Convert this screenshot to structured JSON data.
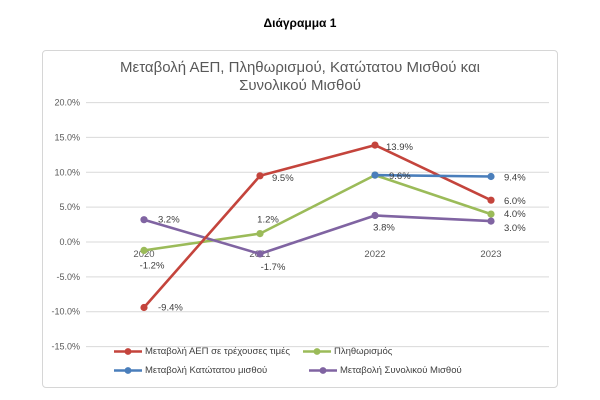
{
  "page": {
    "title": "Διάγραμμα 1"
  },
  "chart": {
    "title_line1": "Μεταβολή ΑΕΠ, Πληθωρισμού, Κατώτατου Μισθού και",
    "title_line2": "Συνολικού Μισθού"
  },
  "chart_data": {
    "type": "line",
    "title": "Μεταβολή ΑΕΠ, Πληθωρισμού, Κατώτατου Μισθού και Συνολικού Μισθού",
    "categories": [
      "2020",
      "2021",
      "2022",
      "2023"
    ],
    "series": [
      {
        "name": "Μεταβολή ΑΕΠ σε τρέχουσες τιμές",
        "color": "#C4443C",
        "values": [
          -9.4,
          9.5,
          13.9,
          6.0
        ],
        "labels": [
          "-9.4%",
          "9.5%",
          "13.9%",
          "6.0%"
        ]
      },
      {
        "name": "Πληθωρισμός",
        "color": "#9BBB59",
        "values": [
          -1.2,
          1.2,
          9.6,
          4.0
        ],
        "labels": [
          "-1.2%",
          "1.2%",
          "",
          "4.0%"
        ]
      },
      {
        "name": "Μεταβολή Κατώτατου μισθού",
        "color": "#4A7EBB",
        "values": [
          null,
          null,
          9.6,
          9.4
        ],
        "labels": [
          "",
          "",
          "9.6%",
          "9.4%"
        ]
      },
      {
        "name": "Μεταβολή Συνολικού Μισθού",
        "color": "#8064A2",
        "values": [
          3.2,
          -1.7,
          3.8,
          3.0
        ],
        "labels": [
          "3.2%",
          "-1.7%",
          "3.8%",
          "3.0%"
        ]
      }
    ],
    "y_ticks": [
      "20.0%",
      "15.0%",
      "10.0%",
      "5.0%",
      "0.0%",
      "-5.0%",
      "-10.0%",
      "-15.0%"
    ],
    "ylim": [
      -15,
      20
    ],
    "y_step": 5,
    "grid": true,
    "grid_color": "#D9D9D9",
    "legend_position": "bottom"
  }
}
